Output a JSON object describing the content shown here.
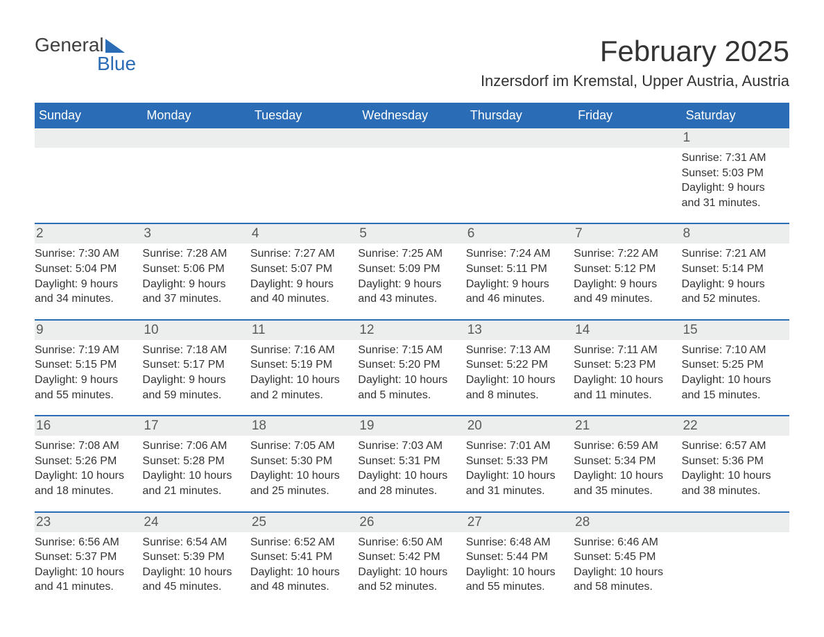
{
  "colors": {
    "header_bg": "#2a6cb5",
    "header_text": "#ffffff",
    "daynum_bg": "#eceded",
    "daynum_text": "#5a5a5a",
    "body_text": "#333333",
    "week_border": "#2a6cb5",
    "logo_gray": "#404040",
    "logo_blue": "#2a6cb5",
    "page_bg": "#ffffff"
  },
  "logo": {
    "part1": "General",
    "part2": "Blue"
  },
  "title": "February 2025",
  "location": "Inzersdorf im Kremstal, Upper Austria, Austria",
  "weekdays": [
    "Sunday",
    "Monday",
    "Tuesday",
    "Wednesday",
    "Thursday",
    "Friday",
    "Saturday"
  ],
  "weeks": [
    [
      null,
      null,
      null,
      null,
      null,
      null,
      {
        "num": "1",
        "sunrise": "Sunrise: 7:31 AM",
        "sunset": "Sunset: 5:03 PM",
        "daylight1": "Daylight: 9 hours",
        "daylight2": "and 31 minutes."
      }
    ],
    [
      {
        "num": "2",
        "sunrise": "Sunrise: 7:30 AM",
        "sunset": "Sunset: 5:04 PM",
        "daylight1": "Daylight: 9 hours",
        "daylight2": "and 34 minutes."
      },
      {
        "num": "3",
        "sunrise": "Sunrise: 7:28 AM",
        "sunset": "Sunset: 5:06 PM",
        "daylight1": "Daylight: 9 hours",
        "daylight2": "and 37 minutes."
      },
      {
        "num": "4",
        "sunrise": "Sunrise: 7:27 AM",
        "sunset": "Sunset: 5:07 PM",
        "daylight1": "Daylight: 9 hours",
        "daylight2": "and 40 minutes."
      },
      {
        "num": "5",
        "sunrise": "Sunrise: 7:25 AM",
        "sunset": "Sunset: 5:09 PM",
        "daylight1": "Daylight: 9 hours",
        "daylight2": "and 43 minutes."
      },
      {
        "num": "6",
        "sunrise": "Sunrise: 7:24 AM",
        "sunset": "Sunset: 5:11 PM",
        "daylight1": "Daylight: 9 hours",
        "daylight2": "and 46 minutes."
      },
      {
        "num": "7",
        "sunrise": "Sunrise: 7:22 AM",
        "sunset": "Sunset: 5:12 PM",
        "daylight1": "Daylight: 9 hours",
        "daylight2": "and 49 minutes."
      },
      {
        "num": "8",
        "sunrise": "Sunrise: 7:21 AM",
        "sunset": "Sunset: 5:14 PM",
        "daylight1": "Daylight: 9 hours",
        "daylight2": "and 52 minutes."
      }
    ],
    [
      {
        "num": "9",
        "sunrise": "Sunrise: 7:19 AM",
        "sunset": "Sunset: 5:15 PM",
        "daylight1": "Daylight: 9 hours",
        "daylight2": "and 55 minutes."
      },
      {
        "num": "10",
        "sunrise": "Sunrise: 7:18 AM",
        "sunset": "Sunset: 5:17 PM",
        "daylight1": "Daylight: 9 hours",
        "daylight2": "and 59 minutes."
      },
      {
        "num": "11",
        "sunrise": "Sunrise: 7:16 AM",
        "sunset": "Sunset: 5:19 PM",
        "daylight1": "Daylight: 10 hours",
        "daylight2": "and 2 minutes."
      },
      {
        "num": "12",
        "sunrise": "Sunrise: 7:15 AM",
        "sunset": "Sunset: 5:20 PM",
        "daylight1": "Daylight: 10 hours",
        "daylight2": "and 5 minutes."
      },
      {
        "num": "13",
        "sunrise": "Sunrise: 7:13 AM",
        "sunset": "Sunset: 5:22 PM",
        "daylight1": "Daylight: 10 hours",
        "daylight2": "and 8 minutes."
      },
      {
        "num": "14",
        "sunrise": "Sunrise: 7:11 AM",
        "sunset": "Sunset: 5:23 PM",
        "daylight1": "Daylight: 10 hours",
        "daylight2": "and 11 minutes."
      },
      {
        "num": "15",
        "sunrise": "Sunrise: 7:10 AM",
        "sunset": "Sunset: 5:25 PM",
        "daylight1": "Daylight: 10 hours",
        "daylight2": "and 15 minutes."
      }
    ],
    [
      {
        "num": "16",
        "sunrise": "Sunrise: 7:08 AM",
        "sunset": "Sunset: 5:26 PM",
        "daylight1": "Daylight: 10 hours",
        "daylight2": "and 18 minutes."
      },
      {
        "num": "17",
        "sunrise": "Sunrise: 7:06 AM",
        "sunset": "Sunset: 5:28 PM",
        "daylight1": "Daylight: 10 hours",
        "daylight2": "and 21 minutes."
      },
      {
        "num": "18",
        "sunrise": "Sunrise: 7:05 AM",
        "sunset": "Sunset: 5:30 PM",
        "daylight1": "Daylight: 10 hours",
        "daylight2": "and 25 minutes."
      },
      {
        "num": "19",
        "sunrise": "Sunrise: 7:03 AM",
        "sunset": "Sunset: 5:31 PM",
        "daylight1": "Daylight: 10 hours",
        "daylight2": "and 28 minutes."
      },
      {
        "num": "20",
        "sunrise": "Sunrise: 7:01 AM",
        "sunset": "Sunset: 5:33 PM",
        "daylight1": "Daylight: 10 hours",
        "daylight2": "and 31 minutes."
      },
      {
        "num": "21",
        "sunrise": "Sunrise: 6:59 AM",
        "sunset": "Sunset: 5:34 PM",
        "daylight1": "Daylight: 10 hours",
        "daylight2": "and 35 minutes."
      },
      {
        "num": "22",
        "sunrise": "Sunrise: 6:57 AM",
        "sunset": "Sunset: 5:36 PM",
        "daylight1": "Daylight: 10 hours",
        "daylight2": "and 38 minutes."
      }
    ],
    [
      {
        "num": "23",
        "sunrise": "Sunrise: 6:56 AM",
        "sunset": "Sunset: 5:37 PM",
        "daylight1": "Daylight: 10 hours",
        "daylight2": "and 41 minutes."
      },
      {
        "num": "24",
        "sunrise": "Sunrise: 6:54 AM",
        "sunset": "Sunset: 5:39 PM",
        "daylight1": "Daylight: 10 hours",
        "daylight2": "and 45 minutes."
      },
      {
        "num": "25",
        "sunrise": "Sunrise: 6:52 AM",
        "sunset": "Sunset: 5:41 PM",
        "daylight1": "Daylight: 10 hours",
        "daylight2": "and 48 minutes."
      },
      {
        "num": "26",
        "sunrise": "Sunrise: 6:50 AM",
        "sunset": "Sunset: 5:42 PM",
        "daylight1": "Daylight: 10 hours",
        "daylight2": "and 52 minutes."
      },
      {
        "num": "27",
        "sunrise": "Sunrise: 6:48 AM",
        "sunset": "Sunset: 5:44 PM",
        "daylight1": "Daylight: 10 hours",
        "daylight2": "and 55 minutes."
      },
      {
        "num": "28",
        "sunrise": "Sunrise: 6:46 AM",
        "sunset": "Sunset: 5:45 PM",
        "daylight1": "Daylight: 10 hours",
        "daylight2": "and 58 minutes."
      },
      null
    ]
  ]
}
